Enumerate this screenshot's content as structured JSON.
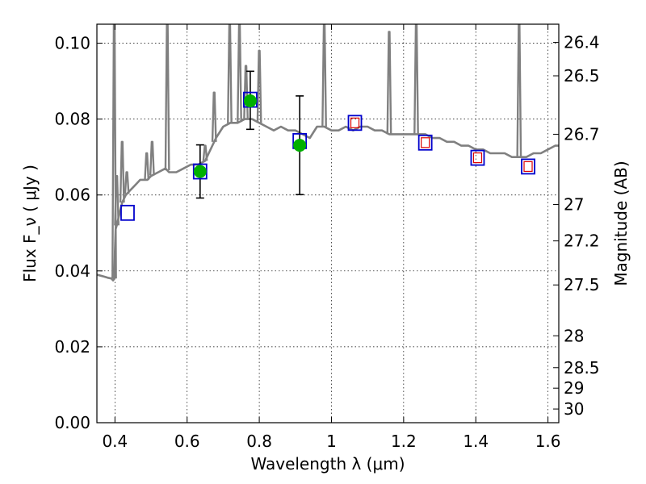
{
  "chart_data": {
    "type": "scatter",
    "xlabel": "Wavelength λ (μm)",
    "ylabel": "Flux F_ν ( μJy )",
    "y2label": "Magnitude (AB)",
    "xlim": [
      0.35,
      1.63
    ],
    "ylim": [
      0.0,
      0.105
    ],
    "x_ticks": [
      0.4,
      0.6,
      0.8,
      1.0,
      1.2,
      1.4,
      1.6
    ],
    "x_tick_labels": [
      "0.4",
      "0.6",
      "0.8",
      "1",
      "1.2",
      "1.4",
      "1.6"
    ],
    "y_ticks": [
      0.0,
      0.02,
      0.04,
      0.06,
      0.08,
      0.1
    ],
    "y_tick_labels": [
      "0.00",
      "0.02",
      "0.04",
      "0.06",
      "0.08",
      "0.10"
    ],
    "y2_ticks": [
      {
        "flux": 0.1002,
        "label": "26.4"
      },
      {
        "flux": 0.0914,
        "label": "26.5"
      },
      {
        "flux": 0.076,
        "label": "26.7"
      },
      {
        "flux": 0.0575,
        "label": "27"
      },
      {
        "flux": 0.0479,
        "label": "27.2"
      },
      {
        "flux": 0.0363,
        "label": "27.5"
      },
      {
        "flux": 0.0229,
        "label": "28"
      },
      {
        "flux": 0.0145,
        "label": "28.5"
      },
      {
        "flux": 0.0091,
        "label": "29"
      },
      {
        "flux": 0.0036,
        "label": "30"
      }
    ],
    "grid": true,
    "colors": {
      "model": "#808080",
      "observed": "#00b000",
      "errorbar": "#000000",
      "box": "#0000cc",
      "inner_box": "#dd0000"
    },
    "model_spectrum": {
      "x": [
        0.35,
        0.37,
        0.38,
        0.39,
        0.395,
        0.398,
        0.4,
        0.402,
        0.405,
        0.41,
        0.415,
        0.42,
        0.425,
        0.43,
        0.44,
        0.45,
        0.46,
        0.47,
        0.48,
        0.49,
        0.5,
        0.52,
        0.54,
        0.55,
        0.57,
        0.59,
        0.61,
        0.63,
        0.65,
        0.66,
        0.68,
        0.7,
        0.72,
        0.74,
        0.76,
        0.78,
        0.8,
        0.82,
        0.84,
        0.86,
        0.88,
        0.9,
        0.92,
        0.94,
        0.96,
        0.98,
        1.0,
        1.02,
        1.04,
        1.06,
        1.08,
        1.1,
        1.12,
        1.14,
        1.16,
        1.18,
        1.2,
        1.22,
        1.24,
        1.26,
        1.28,
        1.3,
        1.32,
        1.34,
        1.36,
        1.38,
        1.4,
        1.42,
        1.44,
        1.46,
        1.48,
        1.5,
        1.52,
        1.54,
        1.56,
        1.58,
        1.6,
        1.62,
        1.63
      ],
      "y": [
        0.039,
        0.0385,
        0.0382,
        0.038,
        0.0375,
        0.038,
        0.045,
        0.051,
        0.052,
        0.054,
        0.056,
        0.058,
        0.059,
        0.06,
        0.061,
        0.062,
        0.063,
        0.064,
        0.064,
        0.064,
        0.065,
        0.066,
        0.067,
        0.066,
        0.066,
        0.067,
        0.068,
        0.068,
        0.069,
        0.071,
        0.075,
        0.078,
        0.079,
        0.079,
        0.08,
        0.08,
        0.079,
        0.078,
        0.077,
        0.078,
        0.077,
        0.077,
        0.076,
        0.075,
        0.078,
        0.078,
        0.077,
        0.077,
        0.078,
        0.077,
        0.078,
        0.078,
        0.077,
        0.077,
        0.076,
        0.076,
        0.076,
        0.076,
        0.076,
        0.076,
        0.075,
        0.075,
        0.074,
        0.074,
        0.073,
        0.073,
        0.072,
        0.072,
        0.071,
        0.071,
        0.071,
        0.07,
        0.07,
        0.07,
        0.071,
        0.071,
        0.072,
        0.073,
        0.073
      ]
    },
    "emission_lines": [
      {
        "x": 0.398,
        "peak": 0.105
      },
      {
        "x": 0.405,
        "peak": 0.065
      },
      {
        "x": 0.42,
        "peak": 0.074
      },
      {
        "x": 0.433,
        "peak": 0.066
      },
      {
        "x": 0.488,
        "peak": 0.071
      },
      {
        "x": 0.503,
        "peak": 0.074
      },
      {
        "x": 0.545,
        "peak": 0.105
      },
      {
        "x": 0.65,
        "peak": 0.073
      },
      {
        "x": 0.675,
        "peak": 0.087
      },
      {
        "x": 0.718,
        "peak": 0.105
      },
      {
        "x": 0.745,
        "peak": 0.105
      },
      {
        "x": 0.763,
        "peak": 0.094
      },
      {
        "x": 0.8,
        "peak": 0.098
      },
      {
        "x": 0.98,
        "peak": 0.105
      },
      {
        "x": 1.16,
        "peak": 0.103
      },
      {
        "x": 1.235,
        "peak": 0.105
      },
      {
        "x": 1.52,
        "peak": 0.105
      }
    ],
    "observed": [
      {
        "x": 0.636,
        "y": 0.0662,
        "err_low": 0.007,
        "err_high": 0.007
      },
      {
        "x": 0.775,
        "y": 0.0848,
        "err_low": 0.0075,
        "err_high": 0.0078
      },
      {
        "x": 0.912,
        "y": 0.0731,
        "err_low": 0.013,
        "err_high": 0.013
      }
    ],
    "model_bands": [
      {
        "x": 0.435,
        "y": 0.0553,
        "inner": false
      },
      {
        "x": 0.636,
        "y": 0.0662,
        "inner": false
      },
      {
        "x": 0.775,
        "y": 0.0851,
        "inner": false
      },
      {
        "x": 0.912,
        "y": 0.0742,
        "inner": false
      },
      {
        "x": 1.065,
        "y": 0.079,
        "inner": true
      },
      {
        "x": 1.26,
        "y": 0.0738,
        "inner": true
      },
      {
        "x": 1.405,
        "y": 0.0698,
        "inner": true
      },
      {
        "x": 1.545,
        "y": 0.0675,
        "inner": true
      }
    ]
  }
}
